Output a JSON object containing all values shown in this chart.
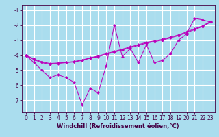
{
  "title": "",
  "xlabel": "Windchill (Refroidissement éolien,°C)",
  "ylabel": "",
  "bg_color": "#aaddee",
  "grid_color": "#ffffff",
  "line_color": "#bb00bb",
  "x_data": [
    0,
    1,
    2,
    3,
    4,
    5,
    6,
    7,
    8,
    9,
    10,
    11,
    12,
    13,
    14,
    15,
    16,
    17,
    18,
    19,
    20,
    21,
    22,
    23
  ],
  "y_main": [
    -4.0,
    -4.5,
    -5.0,
    -5.5,
    -5.3,
    -5.5,
    -5.8,
    -7.3,
    -6.2,
    -6.5,
    -4.7,
    -2.0,
    -4.1,
    -3.55,
    -4.5,
    -3.3,
    -4.5,
    -4.35,
    -3.9,
    -3.0,
    -2.6,
    -1.55,
    -1.65,
    -1.8
  ],
  "y_smooth1": [
    -4.0,
    -4.3,
    -4.5,
    -4.6,
    -4.55,
    -4.5,
    -4.45,
    -4.35,
    -4.2,
    -4.1,
    -3.95,
    -3.8,
    -3.65,
    -3.5,
    -3.35,
    -3.2,
    -3.1,
    -3.0,
    -2.85,
    -2.7,
    -2.5,
    -2.3,
    -2.1,
    -1.8
  ],
  "y_smooth2": [
    -4.0,
    -4.25,
    -4.45,
    -4.55,
    -4.52,
    -4.48,
    -4.42,
    -4.32,
    -4.18,
    -4.05,
    -3.9,
    -3.75,
    -3.6,
    -3.45,
    -3.3,
    -3.15,
    -3.05,
    -2.95,
    -2.8,
    -2.65,
    -2.45,
    -2.25,
    -2.05,
    -1.75
  ],
  "ylim": [
    -7.8,
    -0.7
  ],
  "xlim": [
    -0.5,
    23.5
  ],
  "xticks": [
    0,
    1,
    2,
    3,
    4,
    5,
    6,
    7,
    8,
    9,
    10,
    11,
    12,
    13,
    14,
    15,
    16,
    17,
    18,
    19,
    20,
    21,
    22,
    23
  ],
  "yticks": [
    -7,
    -6,
    -5,
    -4,
    -3,
    -2,
    -1
  ],
  "tick_fontsize": 5.5,
  "xlabel_fontsize": 6.0,
  "marker": "D",
  "marker_size": 2.0,
  "linewidth": 0.75
}
